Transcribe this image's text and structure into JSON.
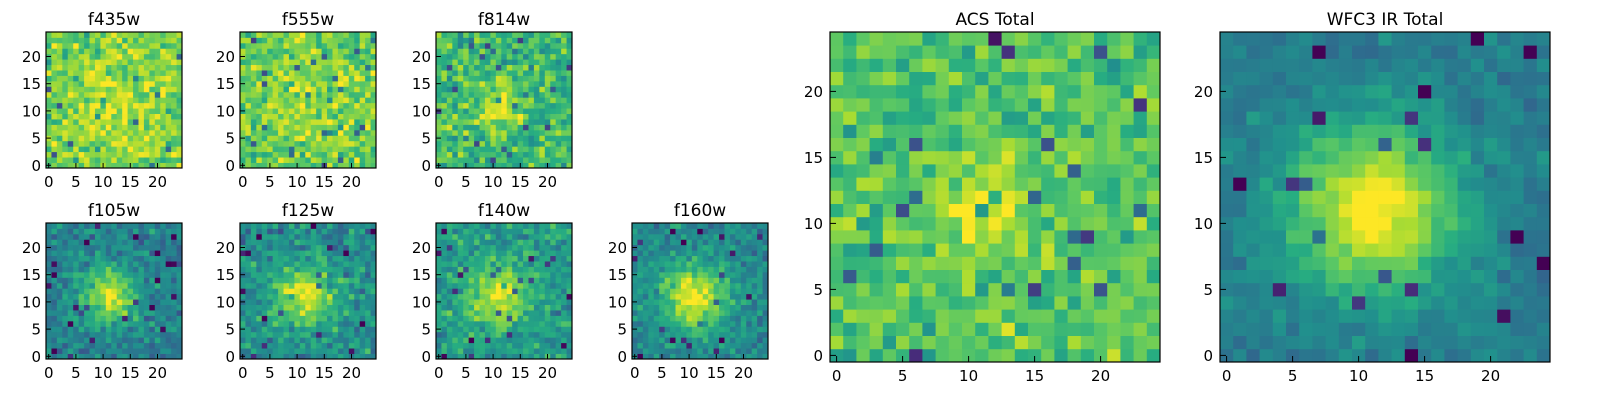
{
  "chart_data": [
    {
      "type": "heatmap",
      "title": "f435w",
      "grid_size": 25,
      "xlim": [
        -0.5,
        24.5
      ],
      "ylim": [
        -0.5,
        24.5
      ],
      "xticks": [
        0,
        5,
        10,
        15,
        20
      ],
      "yticks": [
        0,
        5,
        10,
        15,
        20
      ],
      "tick_labels": [
        "0",
        "5",
        "10",
        "15",
        "20"
      ],
      "colormap": "viridis",
      "source_center": [
        12,
        11
      ],
      "source_sigma": 6,
      "source_amplitude": 0.12,
      "background_level": 0.78,
      "noise_level": 0.16,
      "seed": 11
    },
    {
      "type": "heatmap",
      "title": "f555w",
      "grid_size": 25,
      "xlim": [
        -0.5,
        24.5
      ],
      "ylim": [
        -0.5,
        24.5
      ],
      "xticks": [
        0,
        5,
        10,
        15,
        20
      ],
      "yticks": [
        0,
        5,
        10,
        15,
        20
      ],
      "tick_labels": [
        "0",
        "5",
        "10",
        "15",
        "20"
      ],
      "colormap": "viridis",
      "source_center": [
        12,
        11
      ],
      "source_sigma": 6,
      "source_amplitude": 0.1,
      "background_level": 0.76,
      "noise_level": 0.16,
      "seed": 23
    },
    {
      "type": "heatmap",
      "title": "f814w",
      "grid_size": 25,
      "xlim": [
        -0.5,
        24.5
      ],
      "ylim": [
        -0.5,
        24.5
      ],
      "xticks": [
        0,
        5,
        10,
        15,
        20
      ],
      "yticks": [
        0,
        5,
        10,
        15,
        20
      ],
      "tick_labels": [
        "0",
        "5",
        "10",
        "15",
        "20"
      ],
      "colormap": "viridis",
      "source_center": [
        11,
        11
      ],
      "source_sigma": 3,
      "source_amplitude": 0.25,
      "background_level": 0.68,
      "noise_level": 0.17,
      "seed": 37
    },
    {
      "type": "heatmap",
      "title": "f105w",
      "grid_size": 25,
      "xlim": [
        -0.5,
        24.5
      ],
      "ylim": [
        -0.5,
        24.5
      ],
      "xticks": [
        0,
        5,
        10,
        15,
        20
      ],
      "yticks": [
        0,
        5,
        10,
        15,
        20
      ],
      "tick_labels": [
        "0",
        "5",
        "10",
        "15",
        "20"
      ],
      "colormap": "viridis",
      "source_center": [
        11,
        11
      ],
      "source_sigma": 3.5,
      "source_amplitude": 0.5,
      "background_level": 0.44,
      "noise_level": 0.13,
      "seed": 41
    },
    {
      "type": "heatmap",
      "title": "f125w",
      "grid_size": 25,
      "xlim": [
        -0.5,
        24.5
      ],
      "ylim": [
        -0.5,
        24.5
      ],
      "xticks": [
        0,
        5,
        10,
        15,
        20
      ],
      "yticks": [
        0,
        5,
        10,
        15,
        20
      ],
      "tick_labels": [
        "0",
        "5",
        "10",
        "15",
        "20"
      ],
      "colormap": "viridis",
      "source_center": [
        11,
        11
      ],
      "source_sigma": 3.8,
      "source_amplitude": 0.45,
      "background_level": 0.5,
      "noise_level": 0.15,
      "seed": 53
    },
    {
      "type": "heatmap",
      "title": "f140w",
      "grid_size": 25,
      "xlim": [
        -0.5,
        24.5
      ],
      "ylim": [
        -0.5,
        24.5
      ],
      "xticks": [
        0,
        5,
        10,
        15,
        20
      ],
      "yticks": [
        0,
        5,
        10,
        15,
        20
      ],
      "tick_labels": [
        "0",
        "5",
        "10",
        "15",
        "20"
      ],
      "colormap": "viridis",
      "source_center": [
        11,
        11
      ],
      "source_sigma": 4,
      "source_amplitude": 0.4,
      "background_level": 0.55,
      "noise_level": 0.14,
      "seed": 67
    },
    {
      "type": "heatmap",
      "title": "f160w",
      "grid_size": 25,
      "xlim": [
        -0.5,
        24.5
      ],
      "ylim": [
        -0.5,
        24.5
      ],
      "xticks": [
        0,
        5,
        10,
        15,
        20
      ],
      "yticks": [
        0,
        5,
        10,
        15,
        20
      ],
      "tick_labels": [
        "0",
        "5",
        "10",
        "15",
        "20"
      ],
      "colormap": "viridis",
      "source_center": [
        11,
        11
      ],
      "source_sigma": 4,
      "source_amplitude": 0.5,
      "background_level": 0.48,
      "noise_level": 0.12,
      "seed": 79
    },
    {
      "type": "heatmap",
      "title": "ACS Total",
      "grid_size": 25,
      "xlim": [
        -0.5,
        24.5
      ],
      "ylim": [
        -0.5,
        24.5
      ],
      "xticks": [
        0,
        5,
        10,
        15,
        20
      ],
      "yticks": [
        0,
        5,
        10,
        15,
        20
      ],
      "tick_labels": [
        "0",
        "5",
        "10",
        "15",
        "20"
      ],
      "colormap": "viridis",
      "source_center": [
        11,
        11
      ],
      "source_sigma": 2.5,
      "source_amplitude": 0.22,
      "background_level": 0.72,
      "noise_level": 0.14,
      "seed": 97
    },
    {
      "type": "heatmap",
      "title": "WFC3 IR Total",
      "grid_size": 25,
      "xlim": [
        -0.5,
        24.5
      ],
      "ylim": [
        -0.5,
        24.5
      ],
      "xticks": [
        0,
        5,
        10,
        15,
        20
      ],
      "yticks": [
        0,
        5,
        10,
        15,
        20
      ],
      "tick_labels": [
        "0",
        "5",
        "10",
        "15",
        "20"
      ],
      "colormap": "viridis",
      "source_center": [
        11,
        11
      ],
      "source_sigma": 4.5,
      "source_amplitude": 0.58,
      "background_level": 0.42,
      "noise_level": 0.07,
      "seed": 131
    }
  ]
}
